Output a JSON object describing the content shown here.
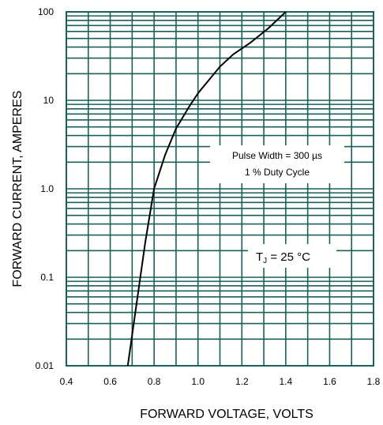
{
  "chart_data": {
    "type": "line",
    "title": "",
    "xlabel": "FORWARD VOLTAGE, VOLTS",
    "ylabel": "FORWARD CURRENT, AMPERES",
    "x_scale": "linear",
    "y_scale": "log",
    "xlim": [
      0.4,
      1.8
    ],
    "ylim": [
      0.01,
      100
    ],
    "xticks": [
      0.4,
      0.6,
      0.8,
      1.0,
      1.2,
      1.4,
      1.6,
      1.8
    ],
    "xtick_labels": [
      "0.4",
      "0.6",
      "0.8",
      "1.0",
      "1.2",
      "1.4",
      "1.6",
      "1.8"
    ],
    "yticks": [
      0.01,
      0.1,
      1,
      10,
      100
    ],
    "ytick_labels": [
      "0.01",
      "0.1",
      "1.0",
      "10",
      "100"
    ],
    "grid": true,
    "series": [
      {
        "x": [
          0.68,
          0.72,
          0.76,
          0.8,
          0.85,
          0.9,
          0.96,
          1.0,
          1.05,
          1.1,
          1.16,
          1.24,
          1.32,
          1.4
        ],
        "y": [
          0.01,
          0.05,
          0.25,
          1.0,
          2.4,
          4.8,
          8.5,
          12,
          17,
          24,
          33,
          45,
          65,
          100
        ]
      }
    ],
    "annotations": {
      "pulse_line1": "Pulse Width = 300 µs",
      "pulse_line2": "1 % Duty Cycle",
      "tj_prefix": "T",
      "tj_sub": "J",
      "tj_suffix": " = 25 °C"
    },
    "colors": {
      "grid": "#1a5f5a",
      "curve": "#000000"
    }
  }
}
